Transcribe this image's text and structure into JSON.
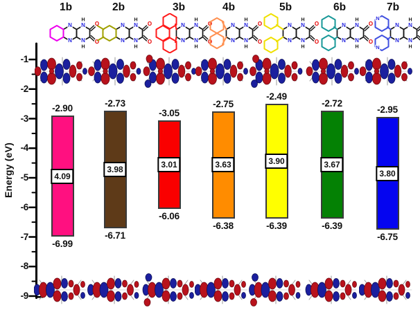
{
  "figure": {
    "axis": {
      "label": "Energy (eV)",
      "tick_labels": [
        "-1",
        "-2",
        "-3",
        "-4",
        "-5",
        "-6",
        "-7",
        "-8",
        "-9"
      ],
      "minor_tick_step": 0.5
    },
    "columns": [
      {
        "id": "1b",
        "label": "1b",
        "structure_variant": "benzo",
        "structure_color": "#ee00ee",
        "bar_color": "#ff1080",
        "lumo_label": "-2.90",
        "gap_label": "4.09",
        "homo_label": "-6.99"
      },
      {
        "id": "2b",
        "label": "2b",
        "structure_variant": "dimethylbenzo",
        "structure_color": "#a0a000",
        "bar_color": "#5e3a18",
        "lumo_label": "-2.73",
        "gap_label": "3.98",
        "homo_label": "-6.71"
      },
      {
        "id": "3b",
        "label": "3b",
        "structure_variant": "tetracyclic",
        "structure_color": "#ff1a1a",
        "bar_color": "#fa0000",
        "lumo_label": "-3.05",
        "gap_label": "3.01",
        "homo_label": "-6.06"
      },
      {
        "id": "4b",
        "label": "4b",
        "structure_variant": "acenaphtho",
        "structure_color": "#ff9050",
        "bar_color": "#ff8c00",
        "lumo_label": "-2.75",
        "gap_label": "3.63",
        "homo_label": "-6.38"
      },
      {
        "id": "5b",
        "label": "5b",
        "structure_variant": "diphenyl",
        "structure_color": "#efe000",
        "bar_color": "#ffff00",
        "lumo_label": "-2.49",
        "gap_label": "3.90",
        "homo_label": "-6.39"
      },
      {
        "id": "6b",
        "label": "6b",
        "structure_variant": "phenanthro",
        "structure_color": "#189898",
        "bar_color": "#048104",
        "lumo_label": "-2.72",
        "gap_label": "3.67",
        "homo_label": "-6.39"
      },
      {
        "id": "7b",
        "label": "7b",
        "structure_variant": "dipyrido",
        "structure_color": "#4050e0",
        "bar_color": "#0505f0",
        "lumo_label": "-2.95",
        "gap_label": "3.80",
        "homo_label": "-6.75"
      }
    ],
    "atom_colors": {
      "nitrogen": "#2a2ae0",
      "oxygen": "#e80000",
      "hydrogen": "#111111"
    },
    "orbital_colors": {
      "positive_lobe_red": "#b8121c",
      "negative_lobe_blue": "#1b1f9e"
    }
  },
  "chart_data": {
    "type": "bar",
    "variant": "energy-level-diagram",
    "title": "",
    "xlabel": "",
    "ylabel": "Energy (eV)",
    "ylim": [
      -9,
      -1
    ],
    "yticks": [
      -1,
      -2,
      -3,
      -4,
      -5,
      -6,
      -7,
      -8,
      -9
    ],
    "minor_tick_interval": 0.5,
    "grid": false,
    "legend": false,
    "categories": [
      "1b",
      "2b",
      "3b",
      "4b",
      "5b",
      "6b",
      "7b"
    ],
    "series": [
      {
        "name": "LUMO energy (eV)",
        "values": [
          -2.9,
          -2.73,
          -3.05,
          -2.75,
          -2.49,
          -2.72,
          -2.95
        ]
      },
      {
        "name": "HOMO energy (eV)",
        "values": [
          -6.99,
          -6.71,
          -6.06,
          -6.38,
          -6.39,
          -6.39,
          -6.75
        ]
      },
      {
        "name": "HOMO-LUMO gap (eV)",
        "values": [
          4.09,
          3.98,
          3.01,
          3.63,
          3.9,
          3.67,
          3.8
        ]
      }
    ],
    "bar_colors": [
      "#ff1080",
      "#5e3a18",
      "#fa0000",
      "#ff8c00",
      "#ffff00",
      "#048104",
      "#0505f0"
    ],
    "annotations": "Each bar spans from HOMO (bottom) to LUMO (top); gap value shown in white box at bar center; LUMO orbital isosurfaces drawn above bars, HOMO isosurfaces below; chemical structures of compounds 1b-7b drawn along the top."
  }
}
